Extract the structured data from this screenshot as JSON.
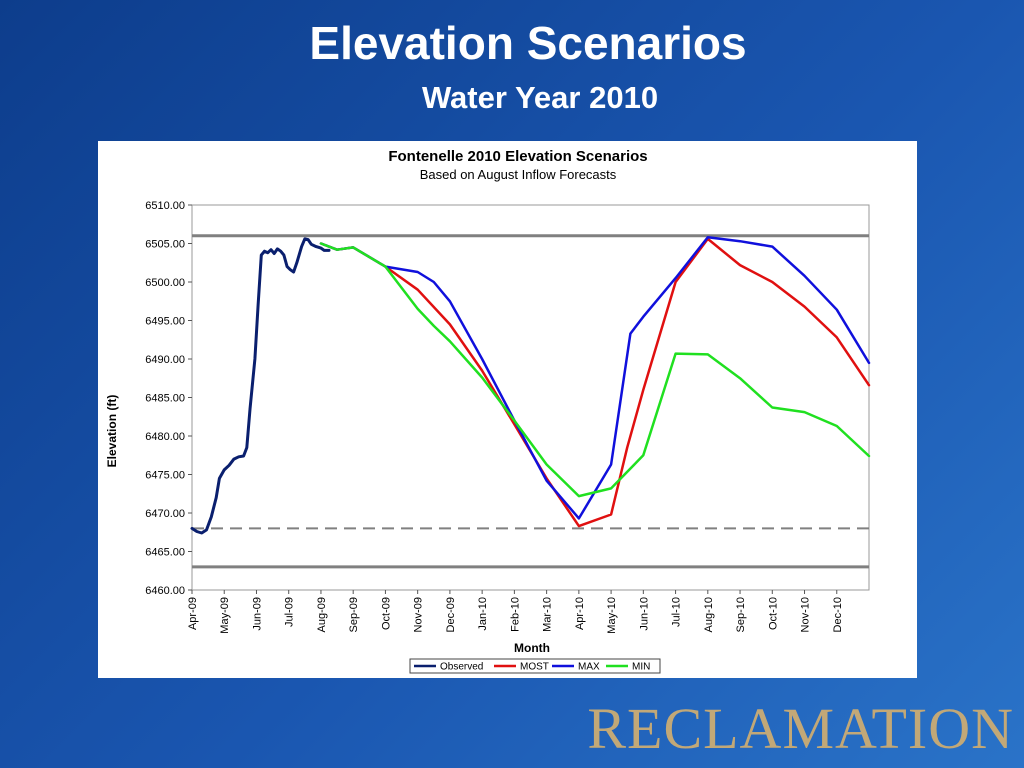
{
  "slide": {
    "title": "Elevation Scenarios",
    "subtitle": "Water Year 2010",
    "logo": "RECLAMATION"
  },
  "colors": {
    "background": "#1646a0",
    "observed": "#0a1f6e",
    "most": "#e01010",
    "max": "#1010dc",
    "min": "#20e020",
    "reference_line": "#808080",
    "logo": "#c2a877"
  },
  "chart_data": {
    "type": "line",
    "title": "Fontenelle 2010 Elevation Scenarios",
    "subtitle": "Based on August Inflow Forecasts",
    "xlabel": "Month",
    "ylabel": "Elevation (ft)",
    "ylim": [
      6460,
      6510
    ],
    "yticks": [
      "6460.00",
      "6465.00",
      "6470.00",
      "6475.00",
      "6480.00",
      "6485.00",
      "6490.00",
      "6495.00",
      "6500.00",
      "6505.00",
      "6510.00"
    ],
    "categories": [
      "Apr-09",
      "May-09",
      "Jun-09",
      "Jul-09",
      "Aug-09",
      "Sep-09",
      "Oct-09",
      "Nov-09",
      "Dec-09",
      "Jan-10",
      "Feb-10",
      "Mar-10",
      "Apr-10",
      "May-10",
      "Jun-10",
      "Jul-10",
      "Aug-10",
      "Sep-10",
      "Oct-10",
      "Nov-10",
      "Dec-10"
    ],
    "grid": false,
    "legend_position": "bottom",
    "reference_lines": [
      {
        "y": 6506,
        "style": "solid"
      },
      {
        "y": 6463,
        "style": "solid"
      },
      {
        "y": 6468,
        "style": "dashed"
      }
    ],
    "series": [
      {
        "name": "Observed",
        "points": [
          [
            0,
            6468.0
          ],
          [
            0.15,
            6467.6
          ],
          [
            0.3,
            6467.4
          ],
          [
            0.45,
            6467.8
          ],
          [
            0.6,
            6469.5
          ],
          [
            0.75,
            6472.0
          ],
          [
            0.85,
            6474.5
          ],
          [
            1.0,
            6475.6
          ],
          [
            1.15,
            6476.2
          ],
          [
            1.3,
            6477.0
          ],
          [
            1.45,
            6477.3
          ],
          [
            1.6,
            6477.4
          ],
          [
            1.7,
            6478.5
          ],
          [
            1.8,
            6483.5
          ],
          [
            1.95,
            6490.0
          ],
          [
            2.05,
            6497.0
          ],
          [
            2.15,
            6503.5
          ],
          [
            2.25,
            6504.0
          ],
          [
            2.35,
            6503.8
          ],
          [
            2.45,
            6504.2
          ],
          [
            2.55,
            6503.7
          ],
          [
            2.65,
            6504.3
          ],
          [
            2.75,
            6504.0
          ],
          [
            2.85,
            6503.5
          ],
          [
            2.95,
            6502.0
          ],
          [
            3.05,
            6501.6
          ],
          [
            3.15,
            6501.3
          ],
          [
            3.25,
            6502.5
          ],
          [
            3.4,
            6504.6
          ],
          [
            3.5,
            6505.6
          ],
          [
            3.6,
            6505.5
          ],
          [
            3.7,
            6504.9
          ],
          [
            3.85,
            6504.6
          ],
          [
            4.0,
            6504.4
          ],
          [
            4.1,
            6504.1
          ],
          [
            4.25,
            6504.1
          ]
        ]
      },
      {
        "name": "MOST",
        "points": [
          [
            4.0,
            6505.0
          ],
          [
            4.5,
            6504.2
          ],
          [
            5.0,
            6504.5
          ],
          [
            6.0,
            6502.0
          ],
          [
            7.0,
            6499.0
          ],
          [
            8.0,
            6494.5
          ],
          [
            9.0,
            6488.5
          ],
          [
            10.0,
            6481.5
          ],
          [
            11.0,
            6474.5
          ],
          [
            12.0,
            6468.3
          ],
          [
            13.0,
            6469.8
          ],
          [
            13.5,
            6478.5
          ],
          [
            14.0,
            6486.0
          ],
          [
            15.0,
            6500.0
          ],
          [
            16.0,
            6505.6
          ],
          [
            17.0,
            6502.2
          ],
          [
            18.0,
            6500.0
          ],
          [
            19.0,
            6496.8
          ],
          [
            20.0,
            6492.8
          ],
          [
            21.0,
            6486.6
          ]
        ]
      },
      {
        "name": "MAX",
        "points": [
          [
            4.0,
            6505.0
          ],
          [
            4.5,
            6504.2
          ],
          [
            5.0,
            6504.5
          ],
          [
            6.0,
            6502.0
          ],
          [
            7.0,
            6501.3
          ],
          [
            7.5,
            6500.0
          ],
          [
            8.0,
            6497.5
          ],
          [
            9.0,
            6490.0
          ],
          [
            10.0,
            6482.0
          ],
          [
            11.0,
            6474.2
          ],
          [
            12.0,
            6469.3
          ],
          [
            13.0,
            6476.3
          ],
          [
            13.6,
            6493.3
          ],
          [
            14.0,
            6495.5
          ],
          [
            15.0,
            6500.5
          ],
          [
            16.0,
            6505.8
          ],
          [
            17.0,
            6505.3
          ],
          [
            18.0,
            6504.6
          ],
          [
            19.0,
            6500.8
          ],
          [
            20.0,
            6496.4
          ],
          [
            21.0,
            6489.5
          ]
        ]
      },
      {
        "name": "MIN",
        "points": [
          [
            4.0,
            6505.0
          ],
          [
            4.5,
            6504.2
          ],
          [
            5.0,
            6504.5
          ],
          [
            6.0,
            6502.0
          ],
          [
            7.0,
            6496.5
          ],
          [
            7.5,
            6494.3
          ],
          [
            8.0,
            6492.3
          ],
          [
            9.0,
            6487.6
          ],
          [
            10.0,
            6482.0
          ],
          [
            11.0,
            6476.3
          ],
          [
            12.0,
            6472.2
          ],
          [
            13.0,
            6473.2
          ],
          [
            14.0,
            6477.5
          ],
          [
            15.0,
            6490.7
          ],
          [
            16.0,
            6490.6
          ],
          [
            17.0,
            6487.5
          ],
          [
            18.0,
            6483.7
          ],
          [
            19.0,
            6483.1
          ],
          [
            20.0,
            6481.3
          ],
          [
            21.0,
            6477.4
          ]
        ]
      }
    ]
  }
}
